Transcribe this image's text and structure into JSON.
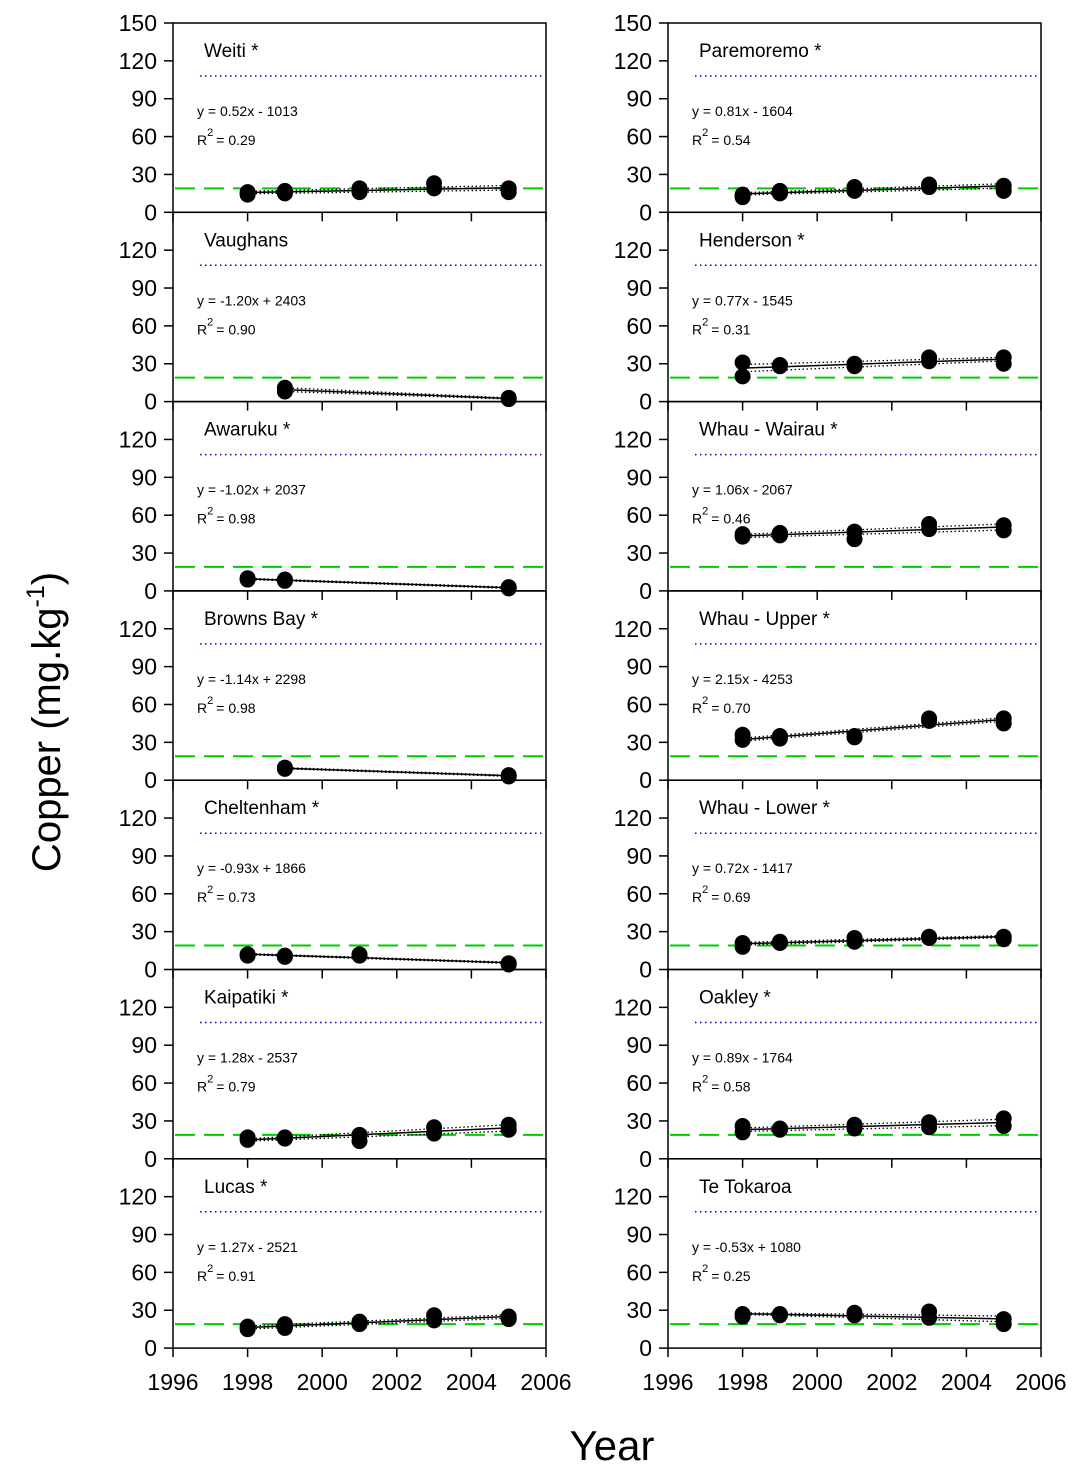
{
  "figure": {
    "ylabel": "Copper (mg.kg",
    "ylabel_sup": "-1",
    "ylabel_close": ")",
    "xlabel": "Year",
    "x_ticks": [
      "1996",
      "1998",
      "2000",
      "2002",
      "2004",
      "2006"
    ],
    "y_ticks_top": [
      "0",
      "30",
      "60",
      "90",
      "120",
      "150"
    ],
    "y_ticks": [
      "0",
      "30",
      "60",
      "90",
      "120"
    ],
    "colors": {
      "upper_guideline": "#0000cc",
      "lower_guideline": "#00cc00",
      "markers": "#000000"
    }
  },
  "chart_data": [
    {
      "type": "scatter",
      "title": "Weiti *",
      "equation": "y = 0.52x - 1013",
      "r2_label": "R",
      "r2_sup": "2",
      "r2_value": "= 0.29",
      "xlim": [
        1996,
        2006
      ],
      "ylim": [
        0,
        150
      ],
      "upper_guideline": 108,
      "lower_guideline": 19,
      "x": [
        1998,
        1999,
        2001,
        2003,
        2005
      ],
      "y": [
        [
          14,
          16
        ],
        [
          15,
          17
        ],
        [
          16,
          19
        ],
        [
          19,
          23
        ],
        [
          16,
          19
        ]
      ]
    },
    {
      "type": "scatter",
      "title": "Paremoremo *",
      "equation": "y = 0.81x - 1604",
      "r2_label": "R",
      "r2_sup": "2",
      "r2_value": "= 0.54",
      "xlim": [
        1996,
        2006
      ],
      "ylim": [
        0,
        150
      ],
      "upper_guideline": 108,
      "lower_guideline": 19,
      "x": [
        1998,
        1999,
        2001,
        2003,
        2005
      ],
      "y": [
        [
          12,
          14
        ],
        [
          15,
          17
        ],
        [
          17,
          20
        ],
        [
          20,
          22
        ],
        [
          17,
          21
        ]
      ]
    },
    {
      "type": "scatter",
      "title": "Vaughans",
      "equation": "y = -1.20x  + 2403",
      "r2_label": "R",
      "r2_sup": "2",
      "r2_value": "= 0.90",
      "xlim": [
        1996,
        2006
      ],
      "ylim": [
        0,
        150
      ],
      "upper_guideline": 108,
      "lower_guideline": 19,
      "x": [
        1999,
        2005
      ],
      "y": [
        [
          8,
          11
        ],
        [
          2,
          3
        ]
      ]
    },
    {
      "type": "scatter",
      "title": "Henderson *",
      "equation": "y = 0.77x - 1545",
      "r2_label": "R",
      "r2_sup": "2",
      "r2_value": "= 0.31",
      "xlim": [
        1996,
        2006
      ],
      "ylim": [
        0,
        150
      ],
      "upper_guideline": 108,
      "lower_guideline": 19,
      "x": [
        1998,
        1999,
        2001,
        2003,
        2005
      ],
      "y": [
        [
          20,
          31
        ],
        [
          28,
          29
        ],
        [
          28,
          30
        ],
        [
          32,
          35
        ],
        [
          30,
          35
        ]
      ]
    },
    {
      "type": "scatter",
      "title": "Awaruku *",
      "equation": "y = -1.02x  + 2037",
      "r2_label": "R",
      "r2_sup": "2",
      "r2_value": "= 0.98",
      "xlim": [
        1996,
        2006
      ],
      "ylim": [
        0,
        150
      ],
      "upper_guideline": 108,
      "lower_guideline": 19,
      "x": [
        1998,
        1999,
        2005
      ],
      "y": [
        [
          9,
          10
        ],
        [
          8,
          9
        ],
        [
          2,
          3
        ]
      ]
    },
    {
      "type": "scatter",
      "title": "Whau - Wairau *",
      "equation": "y = 1.06x - 2067",
      "r2_label": "R",
      "r2_sup": "2",
      "r2_value": "= 0.46",
      "xlim": [
        1996,
        2006
      ],
      "ylim": [
        0,
        150
      ],
      "upper_guideline": 108,
      "lower_guideline": 19,
      "x": [
        1998,
        1999,
        2001,
        2003,
        2005
      ],
      "y": [
        [
          43,
          45
        ],
        [
          44,
          46
        ],
        [
          41,
          47
        ],
        [
          49,
          53
        ],
        [
          48,
          52
        ]
      ]
    },
    {
      "type": "scatter",
      "title": "Browns Bay *",
      "equation": "y = -1.14x + 2298",
      "r2_label": "R",
      "r2_sup": "2",
      "r2_value": "= 0.98",
      "xlim": [
        1996,
        2006
      ],
      "ylim": [
        0,
        150
      ],
      "upper_guideline": 108,
      "lower_guideline": 19,
      "x": [
        1999,
        2005
      ],
      "y": [
        [
          9,
          10
        ],
        [
          3,
          4
        ]
      ]
    },
    {
      "type": "scatter",
      "title": "Whau - Upper *",
      "equation": "y = 2.15x - 4253",
      "r2_label": "R",
      "r2_sup": "2",
      "r2_value": "= 0.70",
      "xlim": [
        1996,
        2006
      ],
      "ylim": [
        0,
        150
      ],
      "upper_guideline": 108,
      "lower_guideline": 19,
      "x": [
        1998,
        1999,
        2001,
        2003,
        2005
      ],
      "y": [
        [
          32,
          36
        ],
        [
          33,
          35
        ],
        [
          34,
          35
        ],
        [
          47,
          49
        ],
        [
          45,
          49
        ]
      ]
    },
    {
      "type": "scatter",
      "title": "Cheltenham *",
      "equation": "y = -0.93x + 1866",
      "r2_label": "R",
      "r2_sup": "2",
      "r2_value": "= 0.73",
      "xlim": [
        1996,
        2006
      ],
      "ylim": [
        0,
        150
      ],
      "upper_guideline": 108,
      "lower_guideline": 19,
      "x": [
        1998,
        1999,
        2001,
        2005
      ],
      "y": [
        [
          11,
          12
        ],
        [
          10,
          11
        ],
        [
          11,
          12
        ],
        [
          4,
          5
        ]
      ]
    },
    {
      "type": "scatter",
      "title": "Whau - Lower *",
      "equation": "y = 0.72x - 1417",
      "r2_label": "R",
      "r2_sup": "2",
      "r2_value": "= 0.69",
      "xlim": [
        1996,
        2006
      ],
      "ylim": [
        0,
        150
      ],
      "upper_guideline": 108,
      "lower_guideline": 19,
      "x": [
        1998,
        1999,
        2001,
        2003,
        2005
      ],
      "y": [
        [
          18,
          21
        ],
        [
          21,
          22
        ],
        [
          22,
          25
        ],
        [
          25,
          26
        ],
        [
          24,
          26
        ]
      ]
    },
    {
      "type": "scatter",
      "title": "Kaipatiki *",
      "equation": "y = 1.28x  - 2537",
      "r2_label": "R",
      "r2_sup": "2",
      "r2_value": "= 0.79",
      "xlim": [
        1996,
        2006
      ],
      "ylim": [
        0,
        150
      ],
      "upper_guideline": 108,
      "lower_guideline": 19,
      "x": [
        1998,
        1999,
        2001,
        2003,
        2005
      ],
      "y": [
        [
          15,
          17
        ],
        [
          16,
          17
        ],
        [
          14,
          19
        ],
        [
          20,
          25
        ],
        [
          23,
          27
        ]
      ]
    },
    {
      "type": "scatter",
      "title": "Oakley *",
      "equation": "y = 0.89x - 1764",
      "r2_label": "R",
      "r2_sup": "2",
      "r2_value": "= 0.58",
      "xlim": [
        1996,
        2006
      ],
      "ylim": [
        0,
        150
      ],
      "upper_guideline": 108,
      "lower_guideline": 19,
      "x": [
        1998,
        1999,
        2001,
        2003,
        2005
      ],
      "y": [
        [
          21,
          26
        ],
        [
          23,
          24
        ],
        [
          24,
          27
        ],
        [
          25,
          29
        ],
        [
          26,
          32
        ]
      ]
    },
    {
      "type": "scatter",
      "title": "Lucas *",
      "equation": "y = 1.27x  - 2521",
      "r2_label": "R",
      "r2_sup": "2",
      "r2_value": "= 0.91",
      "xlim": [
        1996,
        2006
      ],
      "ylim": [
        0,
        150
      ],
      "upper_guideline": 108,
      "lower_guideline": 19,
      "x": [
        1998,
        1999,
        2001,
        2003,
        2005
      ],
      "y": [
        [
          15,
          17
        ],
        [
          16,
          19
        ],
        [
          19,
          21
        ],
        [
          22,
          26
        ],
        [
          23,
          25
        ]
      ]
    },
    {
      "type": "scatter",
      "title": "Te Tokaroa",
      "equation": "y = -0.53x + 1080",
      "r2_label": "R",
      "r2_sup": "2",
      "r2_value": "= 0.25",
      "xlim": [
        1996,
        2006
      ],
      "ylim": [
        0,
        150
      ],
      "upper_guideline": 108,
      "lower_guideline": 19,
      "x": [
        1998,
        1999,
        2001,
        2003,
        2005
      ],
      "y": [
        [
          25,
          27
        ],
        [
          26,
          27
        ],
        [
          26,
          28
        ],
        [
          24,
          29
        ],
        [
          19,
          23
        ]
      ]
    }
  ]
}
